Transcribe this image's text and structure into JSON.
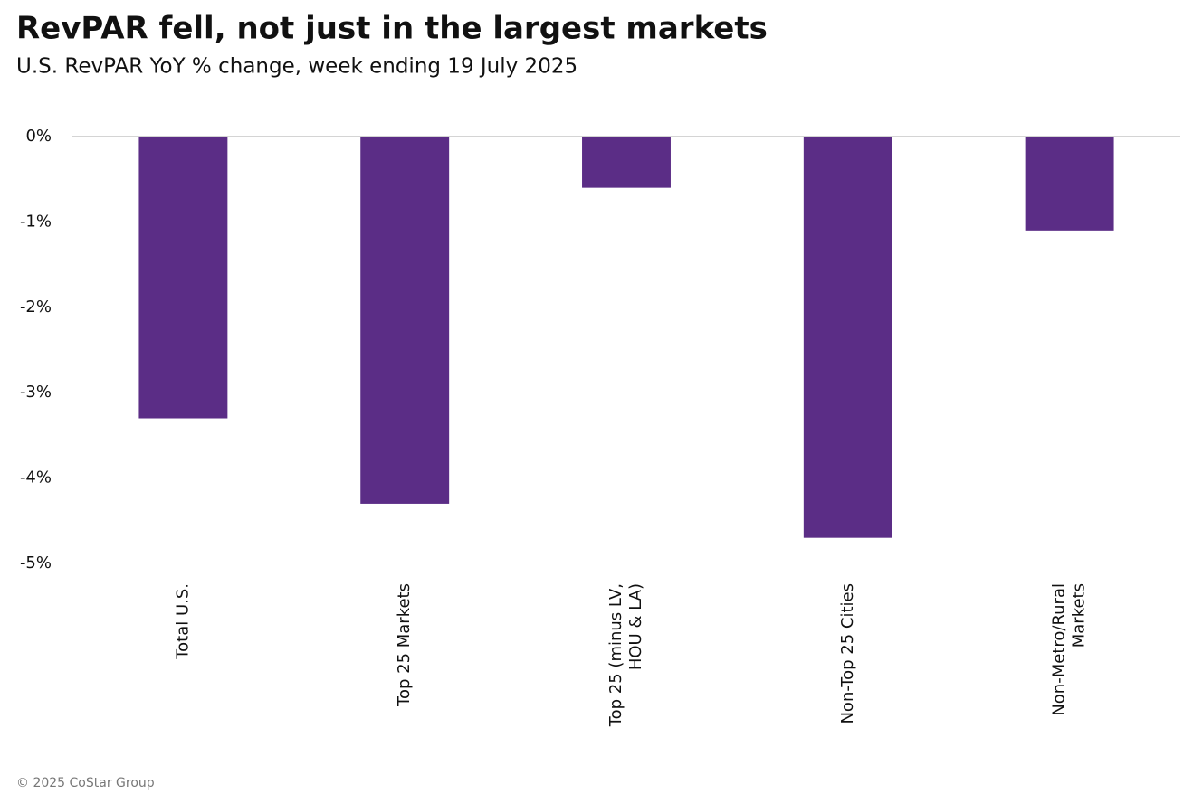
{
  "chart_data": {
    "type": "bar",
    "title": "RevPAR fell, not just in the largest markets",
    "subtitle": "U.S. RevPAR YoY % change, week ending 19 July 2025",
    "categories": [
      "Total U.S.",
      "Top 25 Markets",
      "Top 25 (minus LV,\nHOU & LA)",
      "Non-Top 25 Cities",
      "Non-Metro/Rural\nMarkets"
    ],
    "values": [
      -3.3,
      -4.3,
      -0.6,
      -4.7,
      -1.1
    ],
    "color": "#5b2d86",
    "ylim": [
      -5,
      0
    ],
    "yticks": [
      {
        "value": 0,
        "label": "0%"
      },
      {
        "value": -1,
        "label": "-1%"
      },
      {
        "value": -2,
        "label": "-2%"
      },
      {
        "value": -3,
        "label": "-3%"
      },
      {
        "value": -4,
        "label": "-4%"
      },
      {
        "value": -5,
        "label": "-5%"
      }
    ],
    "grid": false,
    "footer": "© 2025 CoStar Group"
  }
}
